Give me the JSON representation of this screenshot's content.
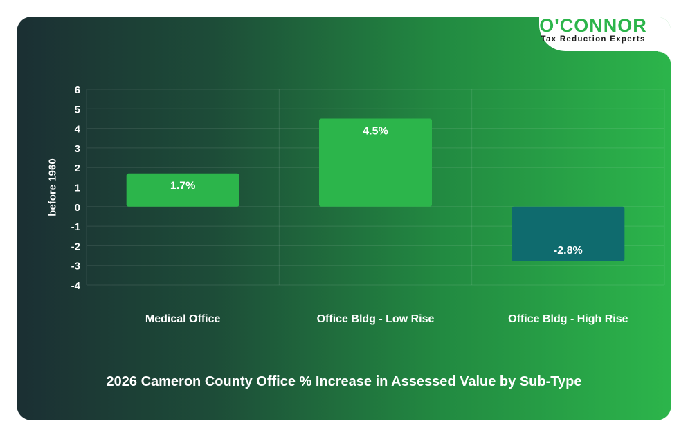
{
  "brand": {
    "name": "O'CONNOR",
    "tagline": "Tax Reduction Experts",
    "accent": "#2cb54b"
  },
  "chart_data": {
    "type": "bar",
    "title": "2026 Cameron County Office % Increase in Assessed Value by Sub-Type",
    "xlabel": "",
    "ylabel": "before 1960",
    "categories": [
      "Medical Office",
      "Office Bldg - Low Rise",
      "Office Bldg - High Rise"
    ],
    "values": [
      1.7,
      4.5,
      -2.8
    ],
    "value_labels": [
      "1.7%",
      "4.5%",
      "-2.8%"
    ],
    "ylim": [
      -4,
      6
    ],
    "yticks": [
      6,
      5,
      4,
      3,
      2,
      1,
      0,
      -1,
      -2,
      -3,
      -4
    ],
    "grid": true,
    "legend": "none",
    "colors": {
      "positive": "#2cb54b",
      "negative": "#0f6b6e"
    }
  }
}
